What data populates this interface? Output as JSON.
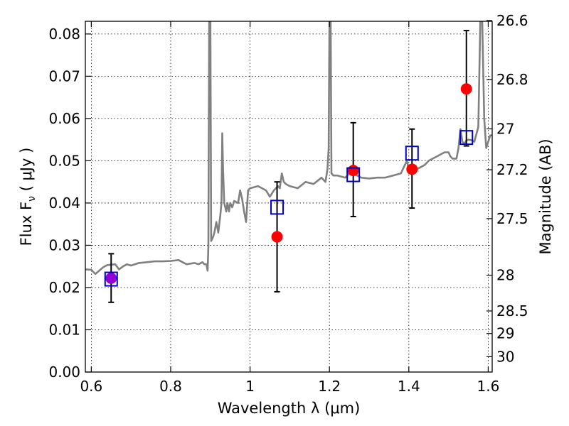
{
  "chart_data": {
    "type": "scatter",
    "title": "",
    "xlabel": "Wavelength  λ (μm)",
    "ylabel": "Flux  F_ν  ( μJy )",
    "ylabel_right": "Magnitude (AB)",
    "xlim": [
      0.585,
      1.61
    ],
    "ylim": [
      0.0,
      0.083
    ],
    "grid": true,
    "colors": {
      "spectrum": "#808080",
      "observed": "#ff0000",
      "model": "#0000cc",
      "overlap": "#9400d3",
      "errorbar": "#000000"
    },
    "x_ticks": [
      {
        "v": 0.6,
        "label": "0.6"
      },
      {
        "v": 0.8,
        "label": "0.8"
      },
      {
        "v": 1.0,
        "label": "1"
      },
      {
        "v": 1.2,
        "label": "1.2"
      },
      {
        "v": 1.4,
        "label": "1.4"
      },
      {
        "v": 1.6,
        "label": "1.6"
      }
    ],
    "y_ticks": [
      {
        "v": 0.0,
        "label": "0.00"
      },
      {
        "v": 0.01,
        "label": "0.01"
      },
      {
        "v": 0.02,
        "label": "0.02"
      },
      {
        "v": 0.03,
        "label": "0.03"
      },
      {
        "v": 0.04,
        "label": "0.04"
      },
      {
        "v": 0.05,
        "label": "0.05"
      },
      {
        "v": 0.06,
        "label": "0.06"
      },
      {
        "v": 0.07,
        "label": "0.07"
      },
      {
        "v": 0.08,
        "label": "0.08"
      }
    ],
    "mag_ticks": [
      {
        "mag": 26.6,
        "label": "26.6"
      },
      {
        "mag": 26.8,
        "label": "26.8"
      },
      {
        "mag": 27.0,
        "label": "27"
      },
      {
        "mag": 27.2,
        "label": "27.2"
      },
      {
        "mag": 27.5,
        "label": "27.5"
      },
      {
        "mag": 28.0,
        "label": "28"
      },
      {
        "mag": 28.5,
        "label": "28.5"
      },
      {
        "mag": 29.0,
        "label": "29"
      },
      {
        "mag": 30.0,
        "label": "30"
      }
    ],
    "spectrum": [
      [
        0.585,
        0.0243
      ],
      [
        0.6,
        0.0242
      ],
      [
        0.61,
        0.0232
      ],
      [
        0.62,
        0.024
      ],
      [
        0.63,
        0.0248
      ],
      [
        0.64,
        0.0253
      ],
      [
        0.66,
        0.0255
      ],
      [
        0.67,
        0.0243
      ],
      [
        0.68,
        0.025
      ],
      [
        0.69,
        0.0255
      ],
      [
        0.7,
        0.0252
      ],
      [
        0.72,
        0.0258
      ],
      [
        0.74,
        0.026
      ],
      [
        0.76,
        0.0262
      ],
      [
        0.78,
        0.0262
      ],
      [
        0.8,
        0.0263
      ],
      [
        0.82,
        0.0265
      ],
      [
        0.83,
        0.026
      ],
      [
        0.84,
        0.0255
      ],
      [
        0.86,
        0.0258
      ],
      [
        0.87,
        0.0255
      ],
      [
        0.88,
        0.026
      ],
      [
        0.885,
        0.0255
      ],
      [
        0.89,
        0.0255
      ],
      [
        0.893,
        0.024
      ],
      [
        0.895,
        0.03
      ],
      [
        0.897,
        0.083
      ],
      [
        0.9,
        0.083
      ],
      [
        0.902,
        0.031
      ],
      [
        0.907,
        0.032
      ],
      [
        0.91,
        0.033
      ],
      [
        0.915,
        0.0355
      ],
      [
        0.92,
        0.033
      ],
      [
        0.925,
        0.037
      ],
      [
        0.928,
        0.04
      ],
      [
        0.93,
        0.0565
      ],
      [
        0.932,
        0.048
      ],
      [
        0.935,
        0.04
      ],
      [
        0.94,
        0.038
      ],
      [
        0.943,
        0.04
      ],
      [
        0.947,
        0.038
      ],
      [
        0.95,
        0.04
      ],
      [
        0.955,
        0.039
      ],
      [
        0.96,
        0.0405
      ],
      [
        0.97,
        0.04
      ],
      [
        0.975,
        0.043
      ],
      [
        0.98,
        0.041
      ],
      [
        0.985,
        0.038
      ],
      [
        0.99,
        0.0355
      ],
      [
        0.995,
        0.043
      ],
      [
        1.0,
        0.0435
      ],
      [
        1.02,
        0.044
      ],
      [
        1.04,
        0.043
      ],
      [
        1.05,
        0.0415
      ],
      [
        1.06,
        0.043
      ],
      [
        1.07,
        0.044
      ],
      [
        1.075,
        0.0435
      ],
      [
        1.08,
        0.047
      ],
      [
        1.085,
        0.045
      ],
      [
        1.09,
        0.0445
      ],
      [
        1.1,
        0.044
      ],
      [
        1.12,
        0.0435
      ],
      [
        1.14,
        0.045
      ],
      [
        1.16,
        0.0445
      ],
      [
        1.18,
        0.046
      ],
      [
        1.19,
        0.045
      ],
      [
        1.195,
        0.048
      ],
      [
        1.198,
        0.053
      ],
      [
        1.2,
        0.083
      ],
      [
        1.203,
        0.083
      ],
      [
        1.205,
        0.047
      ],
      [
        1.21,
        0.0465
      ],
      [
        1.22,
        0.0465
      ],
      [
        1.24,
        0.046
      ],
      [
        1.25,
        0.047
      ],
      [
        1.26,
        0.047
      ],
      [
        1.28,
        0.046
      ],
      [
        1.3,
        0.0458
      ],
      [
        1.32,
        0.046
      ],
      [
        1.34,
        0.046
      ],
      [
        1.36,
        0.0465
      ],
      [
        1.38,
        0.047
      ],
      [
        1.395,
        0.05
      ],
      [
        1.4,
        0.048
      ],
      [
        1.41,
        0.049
      ],
      [
        1.42,
        0.048
      ],
      [
        1.44,
        0.049
      ],
      [
        1.45,
        0.05
      ],
      [
        1.47,
        0.051
      ],
      [
        1.49,
        0.052
      ],
      [
        1.5,
        0.052
      ],
      [
        1.505,
        0.051
      ],
      [
        1.51,
        0.0505
      ],
      [
        1.52,
        0.0505
      ],
      [
        1.525,
        0.053
      ],
      [
        1.53,
        0.0575
      ],
      [
        1.535,
        0.0545
      ],
      [
        1.54,
        0.054
      ],
      [
        1.545,
        0.0548
      ],
      [
        1.55,
        0.055
      ],
      [
        1.56,
        0.0548
      ],
      [
        1.565,
        0.0545
      ],
      [
        1.575,
        0.058
      ],
      [
        1.58,
        0.083
      ],
      [
        1.585,
        0.083
      ],
      [
        1.59,
        0.06
      ],
      [
        1.595,
        0.053
      ],
      [
        1.6,
        0.0545
      ],
      [
        1.605,
        0.056
      ],
      [
        1.61,
        0.056
      ]
    ],
    "observed": [
      {
        "x": 0.65,
        "y": 0.0222,
        "yerr_low": 0.0165,
        "yerr_high": 0.028
      },
      {
        "x": 1.068,
        "y": 0.032,
        "yerr_low": 0.019,
        "yerr_high": 0.045
      },
      {
        "x": 1.26,
        "y": 0.0477,
        "yerr_low": 0.0368,
        "yerr_high": 0.059
      },
      {
        "x": 1.408,
        "y": 0.048,
        "yerr_low": 0.0388,
        "yerr_high": 0.0575
      },
      {
        "x": 1.545,
        "y": 0.067,
        "yerr_low": 0.0535,
        "yerr_high": 0.0808
      }
    ],
    "model": [
      {
        "x": 0.65,
        "y": 0.022
      },
      {
        "x": 1.068,
        "y": 0.039
      },
      {
        "x": 1.26,
        "y": 0.0467
      },
      {
        "x": 1.408,
        "y": 0.0518
      },
      {
        "x": 1.545,
        "y": 0.0555
      }
    ]
  }
}
